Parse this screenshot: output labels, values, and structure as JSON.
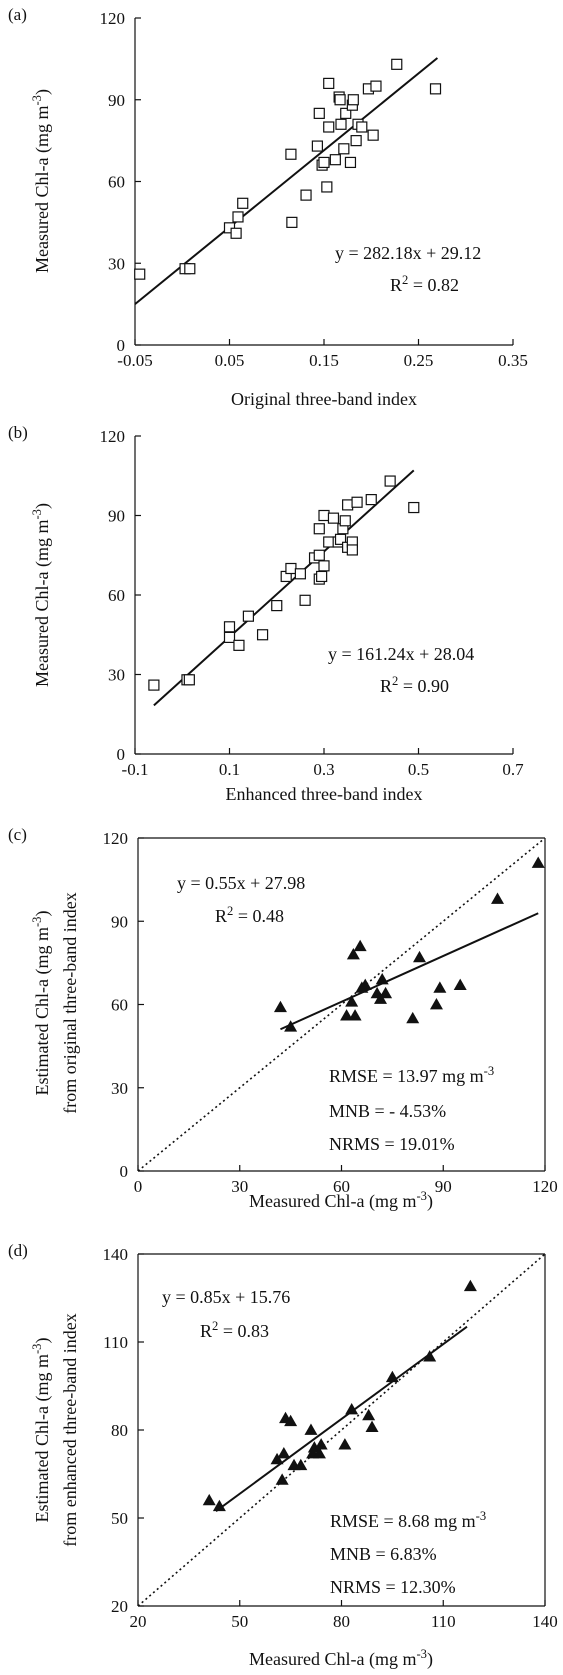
{
  "chart_data": [
    {
      "type": "scatter",
      "panel_label": "(a)",
      "marker": "square",
      "xlabel": "Original three-band index",
      "ylabel": "Measured Chl-a (mg m^-3)",
      "xlim": [
        -0.05,
        0.35
      ],
      "ylim": [
        0,
        120
      ],
      "xticks": [
        "-0.05",
        "0.05",
        "0.15",
        "0.25",
        "0.35"
      ],
      "yticks": [
        "0",
        "30",
        "60",
        "90",
        "120"
      ],
      "box": false,
      "fit_line": {
        "x": [
          -0.05,
          0.27
        ]
      },
      "annotation": {
        "equation": "y = 282.18x + 29.12",
        "r2_label": "R",
        "r2_value": " = 0.82"
      },
      "points": [
        {
          "x": -0.045,
          "y": 26
        },
        {
          "x": 0.003,
          "y": 28
        },
        {
          "x": 0.008,
          "y": 28
        },
        {
          "x": 0.05,
          "y": 43
        },
        {
          "x": 0.057,
          "y": 41
        },
        {
          "x": 0.059,
          "y": 47
        },
        {
          "x": 0.064,
          "y": 52
        },
        {
          "x": 0.115,
          "y": 70
        },
        {
          "x": 0.116,
          "y": 45
        },
        {
          "x": 0.131,
          "y": 55
        },
        {
          "x": 0.143,
          "y": 73
        },
        {
          "x": 0.145,
          "y": 85
        },
        {
          "x": 0.148,
          "y": 66
        },
        {
          "x": 0.15,
          "y": 67
        },
        {
          "x": 0.153,
          "y": 58
        },
        {
          "x": 0.155,
          "y": 80
        },
        {
          "x": 0.155,
          "y": 96
        },
        {
          "x": 0.162,
          "y": 68
        },
        {
          "x": 0.166,
          "y": 91
        },
        {
          "x": 0.167,
          "y": 90
        },
        {
          "x": 0.168,
          "y": 81
        },
        {
          "x": 0.171,
          "y": 72
        },
        {
          "x": 0.173,
          "y": 85
        },
        {
          "x": 0.178,
          "y": 67
        },
        {
          "x": 0.18,
          "y": 88
        },
        {
          "x": 0.181,
          "y": 90
        },
        {
          "x": 0.184,
          "y": 75
        },
        {
          "x": 0.186,
          "y": 81
        },
        {
          "x": 0.19,
          "y": 80
        },
        {
          "x": 0.197,
          "y": 94
        },
        {
          "x": 0.202,
          "y": 77
        },
        {
          "x": 0.205,
          "y": 95
        },
        {
          "x": 0.227,
          "y": 103
        },
        {
          "x": 0.268,
          "y": 94
        }
      ]
    },
    {
      "type": "scatter",
      "panel_label": "(b)",
      "marker": "square",
      "xlabel": "Enhanced three-band index",
      "ylabel": "Measured Chl-a (mg m^-3)",
      "xlim": [
        -0.1,
        0.7
      ],
      "ylim": [
        0,
        120
      ],
      "xticks": [
        "-0.1",
        "0.1",
        "0.3",
        "0.5",
        "0.7"
      ],
      "yticks": [
        "0",
        "30",
        "60",
        "90",
        "120"
      ],
      "box": false,
      "fit_line": {
        "x": [
          -0.06,
          0.49
        ]
      },
      "annotation": {
        "equation": "y = 161.24x + 28.04",
        "r2_label": "R",
        "r2_value": " = 0.90"
      },
      "points": [
        {
          "x": -0.06,
          "y": 26
        },
        {
          "x": 0.01,
          "y": 28
        },
        {
          "x": 0.015,
          "y": 28
        },
        {
          "x": 0.1,
          "y": 48
        },
        {
          "x": 0.1,
          "y": 44
        },
        {
          "x": 0.12,
          "y": 41
        },
        {
          "x": 0.14,
          "y": 52
        },
        {
          "x": 0.17,
          "y": 45
        },
        {
          "x": 0.2,
          "y": 56
        },
        {
          "x": 0.22,
          "y": 67
        },
        {
          "x": 0.23,
          "y": 70
        },
        {
          "x": 0.25,
          "y": 68
        },
        {
          "x": 0.26,
          "y": 58
        },
        {
          "x": 0.28,
          "y": 74
        },
        {
          "x": 0.29,
          "y": 85
        },
        {
          "x": 0.29,
          "y": 75
        },
        {
          "x": 0.29,
          "y": 66
        },
        {
          "x": 0.295,
          "y": 67
        },
        {
          "x": 0.3,
          "y": 90
        },
        {
          "x": 0.3,
          "y": 71
        },
        {
          "x": 0.31,
          "y": 80
        },
        {
          "x": 0.32,
          "y": 89
        },
        {
          "x": 0.33,
          "y": 80
        },
        {
          "x": 0.335,
          "y": 81
        },
        {
          "x": 0.34,
          "y": 85
        },
        {
          "x": 0.345,
          "y": 88
        },
        {
          "x": 0.35,
          "y": 94
        },
        {
          "x": 0.35,
          "y": 78
        },
        {
          "x": 0.36,
          "y": 80
        },
        {
          "x": 0.36,
          "y": 77
        },
        {
          "x": 0.37,
          "y": 95
        },
        {
          "x": 0.4,
          "y": 96
        },
        {
          "x": 0.44,
          "y": 103
        },
        {
          "x": 0.49,
          "y": 93
        }
      ]
    },
    {
      "type": "scatter",
      "panel_label": "(c)",
      "marker": "triangle",
      "xlabel": "Measured Chl-a (mg m^-3)",
      "ylabel": "Estimated Chl-a (mg m^-3) from original three-band index",
      "xlim": [
        0,
        120
      ],
      "ylim": [
        0,
        120
      ],
      "xticks": [
        "0",
        "30",
        "60",
        "90",
        "120"
      ],
      "yticks": [
        "0",
        "30",
        "60",
        "90",
        "120"
      ],
      "box": true,
      "fit_line": {
        "x": [
          42,
          118
        ]
      },
      "one_to_one_line": true,
      "annotation": {
        "equation": "y = 0.55x + 27.98",
        "r2_label": "R",
        "r2_value": " = 0.48"
      },
      "stats": [
        "RMSE = 13.97 mg m^-3",
        "MNB = - 4.53%",
        "NRMS = 19.01%"
      ],
      "points": [
        {
          "x": 42,
          "y": 59
        },
        {
          "x": 45,
          "y": 52
        },
        {
          "x": 61.5,
          "y": 56
        },
        {
          "x": 63,
          "y": 61
        },
        {
          "x": 63.5,
          "y": 78
        },
        {
          "x": 64,
          "y": 56
        },
        {
          "x": 65.5,
          "y": 81
        },
        {
          "x": 66,
          "y": 66
        },
        {
          "x": 67,
          "y": 67
        },
        {
          "x": 70.5,
          "y": 64
        },
        {
          "x": 71.5,
          "y": 62
        },
        {
          "x": 72,
          "y": 69
        },
        {
          "x": 73,
          "y": 64
        },
        {
          "x": 81,
          "y": 55
        },
        {
          "x": 83,
          "y": 77
        },
        {
          "x": 88,
          "y": 60
        },
        {
          "x": 89,
          "y": 66
        },
        {
          "x": 95,
          "y": 67
        },
        {
          "x": 106,
          "y": 98
        },
        {
          "x": 118,
          "y": 111
        }
      ]
    },
    {
      "type": "scatter",
      "panel_label": "(d)",
      "marker": "triangle",
      "xlabel": "Measured Chl-a (mg m^-3)",
      "ylabel": "Estimated Chl-a (mg m^-3) from enhanced three-band index",
      "xlim": [
        20,
        140
      ],
      "ylim": [
        20,
        140
      ],
      "xticks": [
        "20",
        "50",
        "80",
        "110",
        "140"
      ],
      "yticks": [
        "20",
        "50",
        "80",
        "110",
        "140"
      ],
      "box": true,
      "fit_line": {
        "x": [
          43,
          117
        ]
      },
      "one_to_one_line": true,
      "annotation": {
        "equation": "y = 0.85x + 15.76",
        "r2_label": "R",
        "r2_value": " = 0.83"
      },
      "stats": [
        "RMSE = 8.68 mg m^-3",
        "MNB = 6.83%",
        "NRMS = 12.30%"
      ],
      "points": [
        {
          "x": 41,
          "y": 56
        },
        {
          "x": 44,
          "y": 54
        },
        {
          "x": 61,
          "y": 70
        },
        {
          "x": 62.5,
          "y": 63
        },
        {
          "x": 63,
          "y": 72
        },
        {
          "x": 63.5,
          "y": 84
        },
        {
          "x": 65,
          "y": 83
        },
        {
          "x": 66,
          "y": 68
        },
        {
          "x": 68,
          "y": 68
        },
        {
          "x": 71,
          "y": 80
        },
        {
          "x": 71.5,
          "y": 72
        },
        {
          "x": 72,
          "y": 74
        },
        {
          "x": 73.5,
          "y": 72
        },
        {
          "x": 74,
          "y": 75
        },
        {
          "x": 81,
          "y": 75
        },
        {
          "x": 83,
          "y": 87
        },
        {
          "x": 88,
          "y": 85
        },
        {
          "x": 89,
          "y": 81
        },
        {
          "x": 95,
          "y": 98
        },
        {
          "x": 106,
          "y": 105
        },
        {
          "x": 118,
          "y": 129
        }
      ]
    }
  ]
}
